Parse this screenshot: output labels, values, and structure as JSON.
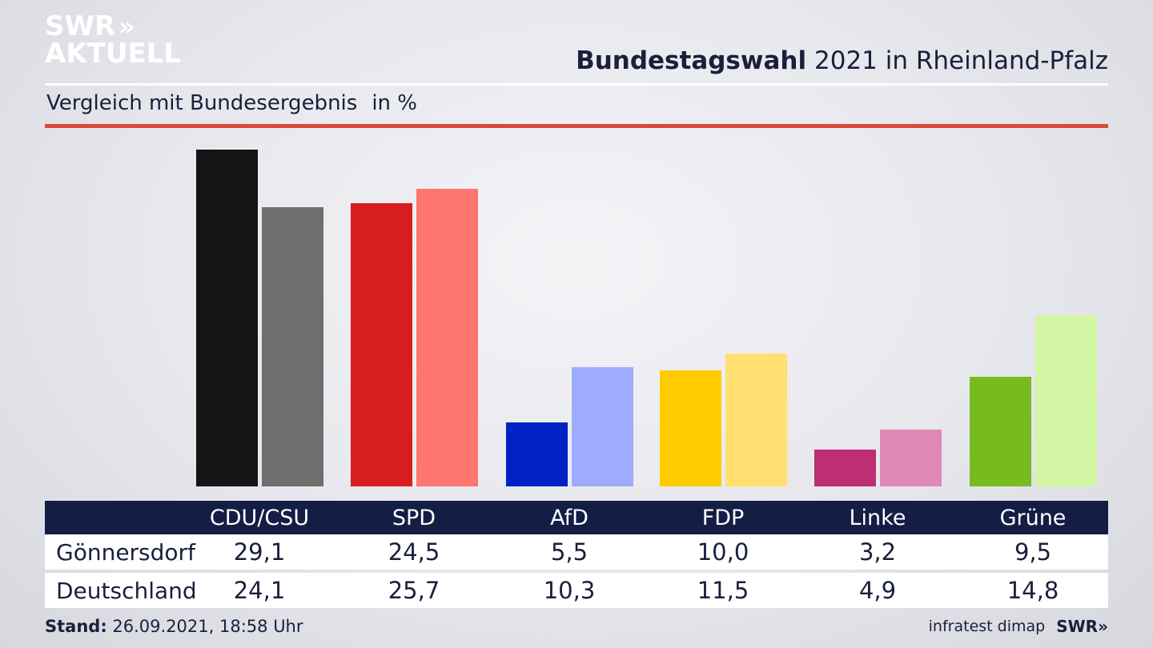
{
  "logo": {
    "line1": "SWR",
    "chevrons": "»",
    "line2": "AKTUELL"
  },
  "header": {
    "title_bold": "Bundestagswahl",
    "title_rest": "2021 in Rheinland-Pfalz"
  },
  "subtitle": {
    "text": "Vergleich mit Bundesergebnis",
    "unit": "in %"
  },
  "footer": {
    "stand_label": "Stand:",
    "stand_value": "26.09.2021, 18:58 Uhr",
    "source": "infratest dimap",
    "brand": "SWR",
    "brand_chevrons": "»"
  },
  "chart_data": {
    "type": "bar",
    "title": "Bundestagswahl 2021 in Rheinland-Pfalz",
    "subtitle": "Vergleich mit Bundesergebnis in %",
    "categories": [
      "CDU/CSU",
      "SPD",
      "AfD",
      "FDP",
      "Linke",
      "Grüne"
    ],
    "series": [
      {
        "name": "Gönnersdorf",
        "display": [
          "29,1",
          "24,5",
          "5,5",
          "10,0",
          "3,2",
          "9,5"
        ],
        "values": [
          29.1,
          24.5,
          5.5,
          10.0,
          3.2,
          9.5
        ]
      },
      {
        "name": "Deutschland",
        "display": [
          "24,1",
          "25,7",
          "10,3",
          "11,5",
          "4,9",
          "14,8"
        ],
        "values": [
          24.1,
          25.7,
          10.3,
          11.5,
          4.9,
          14.8
        ]
      }
    ],
    "colors": {
      "series1": [
        "#141414",
        "#d71e1e",
        "#0022c4",
        "#ffcc00",
        "#bd2e74",
        "#77bc1f"
      ],
      "series2": [
        "#706e6c",
        "#ff7670",
        "#9eabff",
        "#ffe070",
        "#df88b8",
        "#d3f6a6"
      ]
    },
    "ylim": [
      0,
      29.1
    ],
    "grid": false,
    "legend": "table-below"
  }
}
